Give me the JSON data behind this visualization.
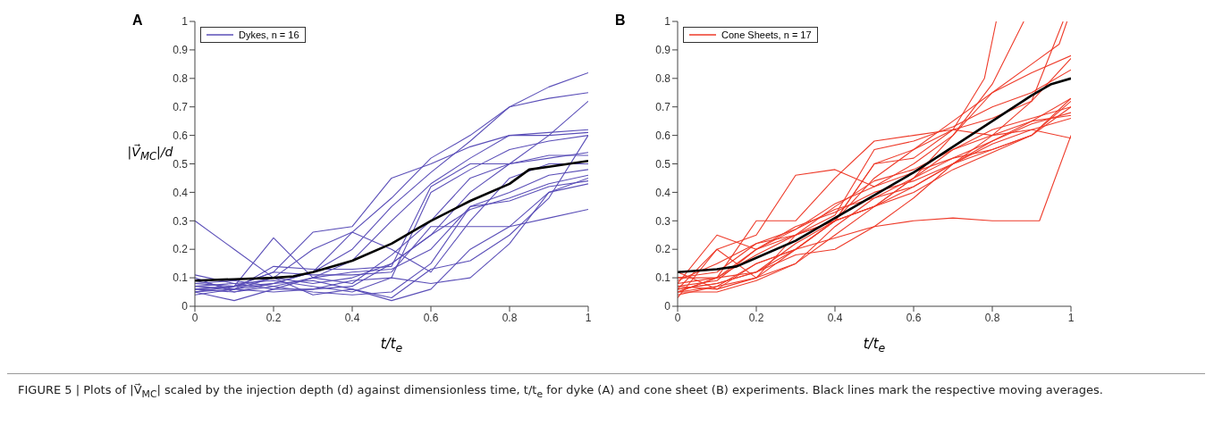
{
  "chart_data": [
    {
      "type": "line",
      "title": "A",
      "xlabel": "t/t$_{e}$",
      "ylabel": "|V⃗$_{MC}$|/d",
      "x": [
        0,
        0.1,
        0.2,
        0.3,
        0.4,
        0.5,
        0.6,
        0.7,
        0.8,
        0.9,
        1
      ],
      "xlim": [
        0,
        1
      ],
      "ylim": [
        0,
        1
      ],
      "xticks": [
        0,
        0.2,
        0.4,
        0.6,
        0.8,
        1
      ],
      "yticks": [
        0,
        0.1,
        0.2,
        0.3,
        0.4,
        0.5,
        0.6,
        0.7,
        0.8,
        0.9,
        1
      ],
      "legend": "top left",
      "marker": "none",
      "line_style": "solid",
      "annotations": [
        "FIGURE 5 | Plots of |V⃗$_{MC}$| scaled by the injection depth (d) against dimensionless time, t/t$_{e}$ for dyke (A) and cone sheet (B) experiments. Black lines mark the respective moving averages."
      ],
      "series": [
        {
          "name": "Dykes, n = 16",
          "color": "#5b4fb8",
          "values": [
            0.05,
            0.06,
            0.1,
            0.2,
            0.26,
            0.38,
            0.52,
            0.6,
            0.7,
            0.77,
            0.82
          ]
        },
        {
          "color": "#5b4fb8",
          "values": [
            0.06,
            0.07,
            0.08,
            0.12,
            0.2,
            0.35,
            0.47,
            0.58,
            0.7,
            0.73,
            0.75
          ]
        },
        {
          "color": "#5b4fb8",
          "values": [
            0.3,
            0.2,
            0.1,
            0.08,
            0.1,
            0.15,
            0.25,
            0.4,
            0.5,
            0.6,
            0.72
          ]
        },
        {
          "color": "#5b4fb8",
          "values": [
            0.08,
            0.07,
            0.12,
            0.26,
            0.28,
            0.45,
            0.5,
            0.56,
            0.6,
            0.61,
            0.62
          ]
        },
        {
          "color": "#5b4fb8",
          "values": [
            0.1,
            0.05,
            0.07,
            0.1,
            0.16,
            0.3,
            0.43,
            0.52,
            0.6,
            0.6,
            0.61
          ]
        },
        {
          "color": "#5b4fb8",
          "values": [
            0.07,
            0.08,
            0.09,
            0.07,
            0.05,
            0.1,
            0.4,
            0.48,
            0.55,
            0.58,
            0.6
          ]
        },
        {
          "color": "#5b4fb8",
          "values": [
            0.04,
            0.06,
            0.14,
            0.13,
            0.13,
            0.14,
            0.42,
            0.5,
            0.5,
            0.52,
            0.54
          ]
        },
        {
          "color": "#5b4fb8",
          "values": [
            0.05,
            0.07,
            0.24,
            0.1,
            0.08,
            0.18,
            0.3,
            0.45,
            0.5,
            0.53,
            0.53
          ]
        },
        {
          "color": "#5b4fb8",
          "values": [
            0.09,
            0.06,
            0.08,
            0.12,
            0.26,
            0.2,
            0.12,
            0.3,
            0.45,
            0.5,
            0.5
          ]
        },
        {
          "color": "#5b4fb8",
          "values": [
            0.11,
            0.08,
            0.06,
            0.1,
            0.12,
            0.13,
            0.2,
            0.35,
            0.4,
            0.46,
            0.48
          ]
        },
        {
          "color": "#5b4fb8",
          "values": [
            0.05,
            0.02,
            0.06,
            0.06,
            0.07,
            0.15,
            0.25,
            0.34,
            0.38,
            0.43,
            0.46
          ]
        },
        {
          "color": "#5b4fb8",
          "values": [
            0.06,
            0.07,
            0.1,
            0.04,
            0.06,
            0.02,
            0.06,
            0.2,
            0.28,
            0.4,
            0.45
          ]
        },
        {
          "color": "#5b4fb8",
          "values": [
            0.08,
            0.09,
            0.07,
            0.05,
            0.04,
            0.05,
            0.15,
            0.35,
            0.37,
            0.42,
            0.44
          ]
        },
        {
          "color": "#5b4fb8",
          "values": [
            0.07,
            0.06,
            0.05,
            0.06,
            0.09,
            0.1,
            0.08,
            0.1,
            0.22,
            0.4,
            0.43
          ]
        },
        {
          "color": "#5b4fb8",
          "values": [
            0.05,
            0.07,
            0.12,
            0.11,
            0.11,
            0.12,
            0.28,
            0.28,
            0.28,
            0.31,
            0.34
          ]
        },
        {
          "color": "#5b4fb8",
          "values": [
            0.06,
            0.05,
            0.08,
            0.09,
            0.06,
            0.03,
            0.13,
            0.16,
            0.25,
            0.38,
            0.6
          ]
        },
        {
          "color": "#000000",
          "x": [
            0,
            0.1,
            0.2,
            0.25,
            0.3,
            0.4,
            0.5,
            0.6,
            0.7,
            0.8,
            0.85,
            0.9,
            1
          ],
          "values": [
            0.09,
            0.095,
            0.1,
            0.105,
            0.12,
            0.16,
            0.22,
            0.3,
            0.37,
            0.43,
            0.48,
            0.49,
            0.51
          ]
        }
      ]
    },
    {
      "type": "line",
      "title": "B",
      "xlabel": "t/t$_{e}$",
      "x": [
        0,
        0.1,
        0.2,
        0.3,
        0.4,
        0.5,
        0.6,
        0.7,
        0.8,
        0.9,
        1
      ],
      "xlim": [
        0,
        1
      ],
      "ylim": [
        0,
        1
      ],
      "xticks": [
        0,
        0.2,
        0.4,
        0.6,
        0.8,
        1
      ],
      "yticks": [
        0,
        0.1,
        0.2,
        0.3,
        0.4,
        0.5,
        0.6,
        0.7,
        0.8,
        0.9,
        1
      ],
      "legend": "top left",
      "marker": "none",
      "line_style": "solid",
      "series": [
        {
          "name": "Cone Sheets, n = 17",
          "color": "#ee3b2a",
          "values": [
            0.03,
            0.2,
            0.25,
            0.46,
            0.48,
            0.42,
            0.5,
            0.6,
            0.75,
            0.82,
            0.88
          ]
        },
        {
          "color": "#ee3b2a",
          "values": [
            0.05,
            0.1,
            0.3,
            0.3,
            0.45,
            0.58,
            0.6,
            0.62,
            0.6,
            0.62,
            0.59
          ]
        },
        {
          "color": "#ee3b2a",
          "values": [
            0.08,
            0.25,
            0.2,
            0.25,
            0.32,
            0.55,
            0.58,
            0.63,
            0.7,
            0.75,
            0.83
          ]
        },
        {
          "color": "#ee3b2a",
          "values": [
            0.06,
            0.08,
            0.12,
            0.22,
            0.3,
            0.5,
            0.52,
            0.62,
            0.66,
            0.72,
            0.87
          ]
        },
        {
          "color": "#ee3b2a",
          "values": [
            0.12,
            0.06,
            0.1,
            0.2,
            0.3,
            0.35,
            0.45,
            0.55,
            0.6,
            0.65,
            0.67
          ]
        },
        {
          "color": "#ee3b2a",
          "values": [
            0.05,
            0.05,
            0.09,
            0.15,
            0.28,
            0.38,
            0.42,
            0.5,
            0.57,
            0.62,
            0.66
          ]
        },
        {
          "color": "#ee3b2a",
          "x": [
            0,
            0.1,
            0.2,
            0.3,
            0.4,
            0.5,
            0.6,
            0.7,
            0.8,
            0.92,
            1
          ],
          "values": [
            0.04,
            0.07,
            0.15,
            0.2,
            0.24,
            0.28,
            0.3,
            0.31,
            0.3,
            0.3,
            0.6
          ]
        },
        {
          "color": "#ee3b2a",
          "values": [
            0.07,
            0.09,
            0.2,
            0.28,
            0.33,
            0.4,
            0.44,
            0.5,
            0.55,
            0.6,
            0.72
          ]
        },
        {
          "color": "#ee3b2a",
          "values": [
            0.1,
            0.1,
            0.18,
            0.25,
            0.3,
            0.35,
            0.4,
            0.48,
            0.54,
            0.6,
            0.7
          ]
        },
        {
          "color": "#ee3b2a",
          "values": [
            0.05,
            0.1,
            0.12,
            0.18,
            0.2,
            0.28,
            0.38,
            0.5,
            0.58,
            0.65,
            0.73
          ]
        },
        {
          "color": "#ee3b2a",
          "values": [
            0.06,
            0.2,
            0.1,
            0.25,
            0.35,
            0.44,
            0.48,
            0.55,
            0.62,
            0.66,
            0.7
          ]
        },
        {
          "color": "#ee3b2a",
          "values": [
            0.09,
            0.15,
            0.22,
            0.27,
            0.34,
            0.38,
            0.45,
            0.52,
            0.58,
            0.64,
            0.68
          ]
        },
        {
          "color": "#ee3b2a",
          "values": [
            0.08,
            0.1,
            0.2,
            0.27,
            0.36,
            0.42,
            0.47,
            0.52,
            0.55,
            0.6,
            0.73
          ]
        },
        {
          "color": "#ee3b2a",
          "x": [
            0,
            0.1,
            0.2,
            0.3,
            0.4,
            0.5,
            0.6,
            0.7,
            0.78,
            0.81
          ],
          "values": [
            0.07,
            0.06,
            0.15,
            0.2,
            0.3,
            0.45,
            0.55,
            0.62,
            0.8,
            1
          ]
        },
        {
          "color": "#ee3b2a",
          "x": [
            0,
            0.1,
            0.2,
            0.3,
            0.4,
            0.5,
            0.6,
            0.7,
            0.8,
            0.88
          ],
          "values": [
            0.06,
            0.08,
            0.12,
            0.2,
            0.3,
            0.35,
            0.45,
            0.6,
            0.78,
            1
          ]
        },
        {
          "color": "#ee3b2a",
          "x": [
            0,
            0.1,
            0.2,
            0.3,
            0.4,
            0.5,
            0.6,
            0.7,
            0.8,
            0.9,
            0.98
          ],
          "values": [
            0.05,
            0.07,
            0.1,
            0.15,
            0.25,
            0.35,
            0.42,
            0.5,
            0.6,
            0.72,
            1
          ]
        },
        {
          "color": "#ee3b2a",
          "x": [
            0,
            0.1,
            0.2,
            0.3,
            0.4,
            0.5,
            0.6,
            0.7,
            0.8,
            0.9,
            0.97,
            0.99
          ],
          "values": [
            0.1,
            0.12,
            0.22,
            0.25,
            0.3,
            0.5,
            0.55,
            0.65,
            0.75,
            0.85,
            0.92,
            1
          ]
        },
        {
          "color": "#000000",
          "x": [
            0,
            0.1,
            0.15,
            0.2,
            0.3,
            0.4,
            0.5,
            0.6,
            0.7,
            0.8,
            0.9,
            0.95,
            1
          ],
          "values": [
            0.12,
            0.13,
            0.14,
            0.17,
            0.23,
            0.31,
            0.39,
            0.47,
            0.56,
            0.65,
            0.74,
            0.78,
            0.8
          ]
        }
      ]
    }
  ]
}
